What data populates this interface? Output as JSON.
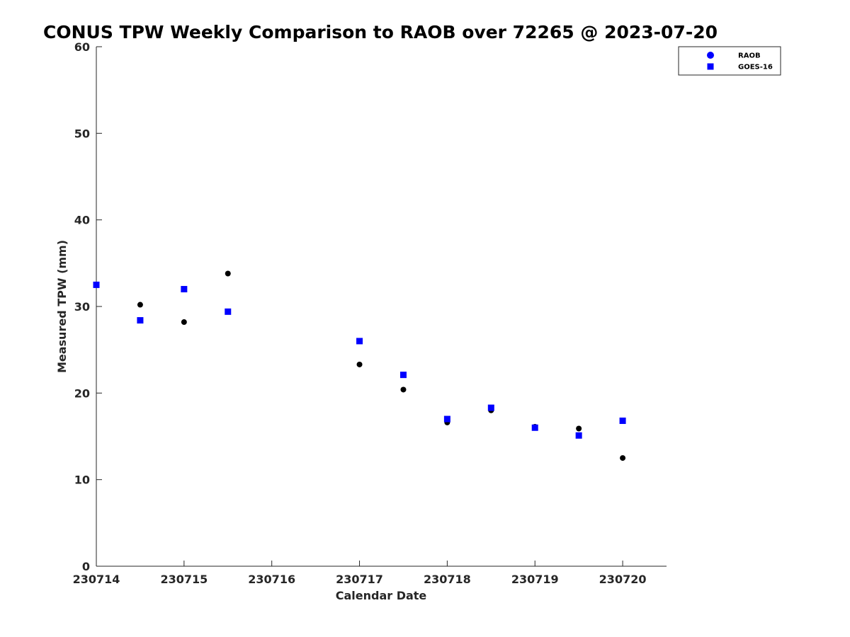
{
  "chart_data": {
    "type": "scatter",
    "title": "CONUS TPW Weekly Comparison to RAOB over 72265 @ 2023-07-20",
    "xlabel": "Calendar Date",
    "ylabel": "Measured TPW (mm)",
    "x_tick_labels": [
      "230714",
      "230715",
      "230716",
      "230717",
      "230718",
      "230719",
      "230720"
    ],
    "x_tick_values": [
      "2023-07-14",
      "2023-07-15",
      "2023-07-16",
      "2023-07-17",
      "2023-07-18",
      "2023-07-19",
      "2023-07-20"
    ],
    "y_ticks": [
      0,
      10,
      20,
      30,
      40,
      50,
      60
    ],
    "xlim": [
      "2023-07-14 00:00",
      "2023-07-20 12:00"
    ],
    "ylim": [
      0,
      60
    ],
    "grid": false,
    "legend_position": "top-right",
    "series": [
      {
        "name": "RAOB",
        "marker": "circle",
        "color": "#000000",
        "legend_color": "#0000ff",
        "points": [
          {
            "x": "2023-07-14 00:00",
            "y": 32.5
          },
          {
            "x": "2023-07-14 12:00",
            "y": 30.2
          },
          {
            "x": "2023-07-15 00:00",
            "y": 28.2
          },
          {
            "x": "2023-07-15 12:00",
            "y": 33.8
          },
          {
            "x": "2023-07-17 00:00",
            "y": 23.3
          },
          {
            "x": "2023-07-17 12:00",
            "y": 20.4
          },
          {
            "x": "2023-07-18 00:00",
            "y": 16.6
          },
          {
            "x": "2023-07-18 12:00",
            "y": 18.0
          },
          {
            "x": "2023-07-19 00:00",
            "y": 16.1
          },
          {
            "x": "2023-07-19 12:00",
            "y": 15.9
          },
          {
            "x": "2023-07-20 00:00",
            "y": 12.5
          }
        ]
      },
      {
        "name": "GOES-16",
        "marker": "square",
        "color": "#0000ff",
        "legend_color": "#0000ff",
        "points": [
          {
            "x": "2023-07-14 00:00",
            "y": 32.5
          },
          {
            "x": "2023-07-14 12:00",
            "y": 28.4
          },
          {
            "x": "2023-07-15 00:00",
            "y": 32.0
          },
          {
            "x": "2023-07-15 12:00",
            "y": 29.4
          },
          {
            "x": "2023-07-17 00:00",
            "y": 26.0
          },
          {
            "x": "2023-07-17 12:00",
            "y": 22.1
          },
          {
            "x": "2023-07-18 00:00",
            "y": 17.0
          },
          {
            "x": "2023-07-18 12:00",
            "y": 18.3
          },
          {
            "x": "2023-07-19 00:00",
            "y": 16.0
          },
          {
            "x": "2023-07-19 12:00",
            "y": 15.1
          },
          {
            "x": "2023-07-20 00:00",
            "y": 16.8
          }
        ]
      }
    ]
  }
}
